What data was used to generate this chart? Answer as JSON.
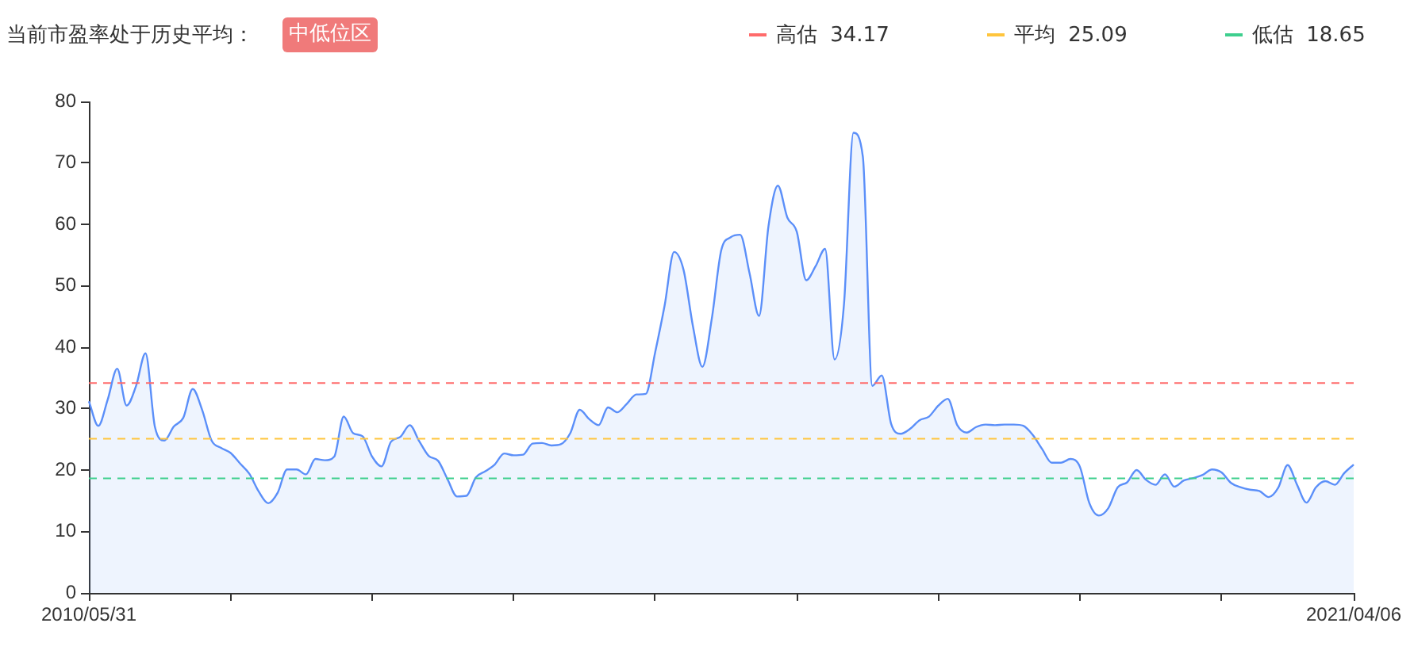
{
  "chart_data": {
    "type": "area",
    "title": "当前市盈率处于历史平均：",
    "subtitle": "中低位区",
    "legend": "top right",
    "categories": [
      "2010/05/31",
      null,
      null,
      null,
      null,
      null,
      null,
      null,
      null,
      null,
      null,
      null,
      null,
      null,
      null,
      null,
      null,
      null,
      null,
      null,
      null,
      null,
      null,
      null,
      null,
      null,
      null,
      null,
      null,
      null,
      null,
      null,
      null,
      null,
      null,
      null,
      null,
      null,
      null,
      null,
      null,
      null,
      null,
      null,
      null,
      null,
      null,
      null,
      null,
      null,
      null,
      null,
      null,
      null,
      null,
      null,
      null,
      null,
      null,
      null,
      null,
      null,
      null,
      null,
      null,
      null,
      null,
      null,
      null,
      null,
      null,
      null,
      null,
      null,
      null,
      null,
      null,
      null,
      null,
      null,
      null,
      null,
      null,
      null,
      null,
      null,
      null,
      null,
      null,
      null,
      null,
      null,
      null,
      null,
      null,
      null,
      null,
      null,
      null,
      null,
      null,
      null,
      null,
      null,
      null,
      null,
      null,
      null,
      null,
      null,
      null,
      null,
      null,
      null,
      null,
      null,
      null,
      null,
      null,
      null,
      null,
      null,
      null,
      null,
      null,
      null,
      null,
      null,
      null,
      null,
      null,
      null,
      null,
      null,
      "2021/04/06"
    ],
    "series": [
      {
        "color": "#5b8ff9",
        "values": [
          31.2,
          27.2,
          31.5,
          36.5,
          30.5,
          33.7,
          39,
          27,
          24.8,
          27.1,
          28.5,
          33.2,
          29.8,
          24.8,
          23.6,
          22.8,
          21.1,
          19.4,
          16.5,
          14.6,
          16.3,
          20.1,
          20.1,
          19.3,
          21.8,
          21.6,
          22.2,
          28.7,
          26,
          25.5,
          22.2,
          20.6,
          24.6,
          25.4,
          27.3,
          24.7,
          22.3,
          21.5,
          18.5,
          15.7,
          15.8,
          18.8,
          19.8,
          20.9,
          22.7,
          22.4,
          22.5,
          24.3,
          24.4,
          24,
          24.2,
          26,
          29.8,
          28.3,
          27.3,
          30.2,
          29.4,
          30.8,
          32.3,
          32.4,
          39.2,
          46.8,
          55.5,
          52.6,
          43.4,
          36.8,
          44.7,
          55.8,
          57.9,
          58.3,
          52,
          45.1,
          59.7,
          66.3,
          61.1,
          58.8,
          50.9,
          53.2,
          56,
          38,
          47,
          74.9,
          71,
          33.7,
          35.4,
          27.5,
          25.9,
          26.7,
          28.1,
          28.7,
          30.5,
          31.6,
          27.3,
          26.1,
          27,
          27.4,
          27.3,
          27.4,
          27.4,
          27.2,
          25.7,
          23.4,
          21.2,
          21.2,
          21.8,
          20.5,
          14.6,
          12.6,
          13.8,
          17.2,
          18,
          20,
          18.4,
          17.6,
          19.3,
          17.3,
          18.3,
          18.7,
          19.2,
          20.1,
          19.6,
          17.9,
          17.2,
          16.8,
          16.6,
          15.6,
          17.1,
          20.8,
          17.6,
          14.7,
          17.2,
          18.2,
          17.6,
          19.5,
          20.9
        ]
      }
    ],
    "ylim": [
      0,
      80
    ],
    "yticks": [
      0,
      10,
      20,
      30,
      40,
      50,
      60,
      70,
      80
    ],
    "ref_lines": [
      {
        "axis": "y",
        "value": 34.17,
        "label": "高估 34.17",
        "color": "#ff6b6b",
        "line_style": "dashed"
      },
      {
        "axis": "y",
        "value": 25.09,
        "label": "平均 25.09",
        "color": "#ffc53d",
        "line_style": "dashed"
      },
      {
        "axis": "y",
        "value": 18.65,
        "label": "低估 18.65",
        "color": "#3ecf8e",
        "line_style": "dashed"
      }
    ]
  }
}
